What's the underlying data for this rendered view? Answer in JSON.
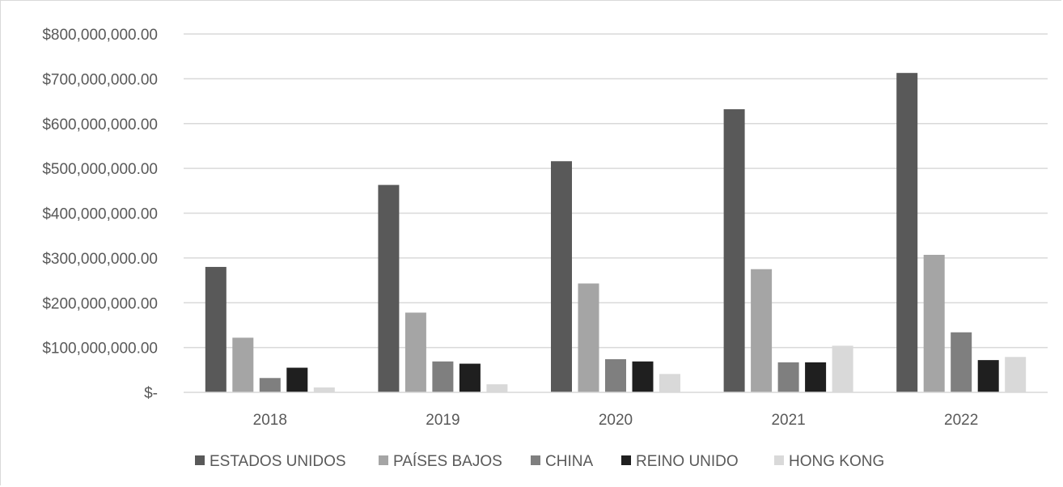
{
  "chart_data": {
    "type": "bar",
    "categories": [
      "2018",
      "2019",
      "2020",
      "2021",
      "2022"
    ],
    "series": [
      {
        "name": "ESTADOS UNIDOS",
        "color": "#595959",
        "values": [
          280000000,
          463000000,
          516000000,
          632000000,
          713000000
        ]
      },
      {
        "name": "PAÍSES BAJOS",
        "color": "#a5a5a5",
        "values": [
          122000000,
          178000000,
          243000000,
          275000000,
          307000000
        ]
      },
      {
        "name": "CHINA",
        "color": "#7f7f7f",
        "values": [
          32000000,
          69000000,
          74000000,
          67000000,
          134000000
        ]
      },
      {
        "name": "REINO UNIDO",
        "color": "#1f1f1f",
        "values": [
          55000000,
          64000000,
          69000000,
          67000000,
          72000000
        ]
      },
      {
        "name": "HONG KONG",
        "color": "#d9d9d9",
        "values": [
          11000000,
          18000000,
          41000000,
          104000000,
          79000000
        ]
      }
    ],
    "ylim": [
      0,
      800000000
    ],
    "y_ticks": [
      {
        "value": 0,
        "label": "$-"
      },
      {
        "value": 100000000,
        "label": "$100,000,000.00"
      },
      {
        "value": 200000000,
        "label": "$200,000,000.00"
      },
      {
        "value": 300000000,
        "label": "$300,000,000.00"
      },
      {
        "value": 400000000,
        "label": "$400,000,000.00"
      },
      {
        "value": 500000000,
        "label": "$500,000,000.00"
      },
      {
        "value": 600000000,
        "label": "$600,000,000.00"
      },
      {
        "value": 700000000,
        "label": "$700,000,000.00"
      },
      {
        "value": 800000000,
        "label": "$800,000,000.00"
      }
    ],
    "title": "",
    "xlabel": "",
    "ylabel": "",
    "grid": true,
    "legend_position": "bottom"
  }
}
